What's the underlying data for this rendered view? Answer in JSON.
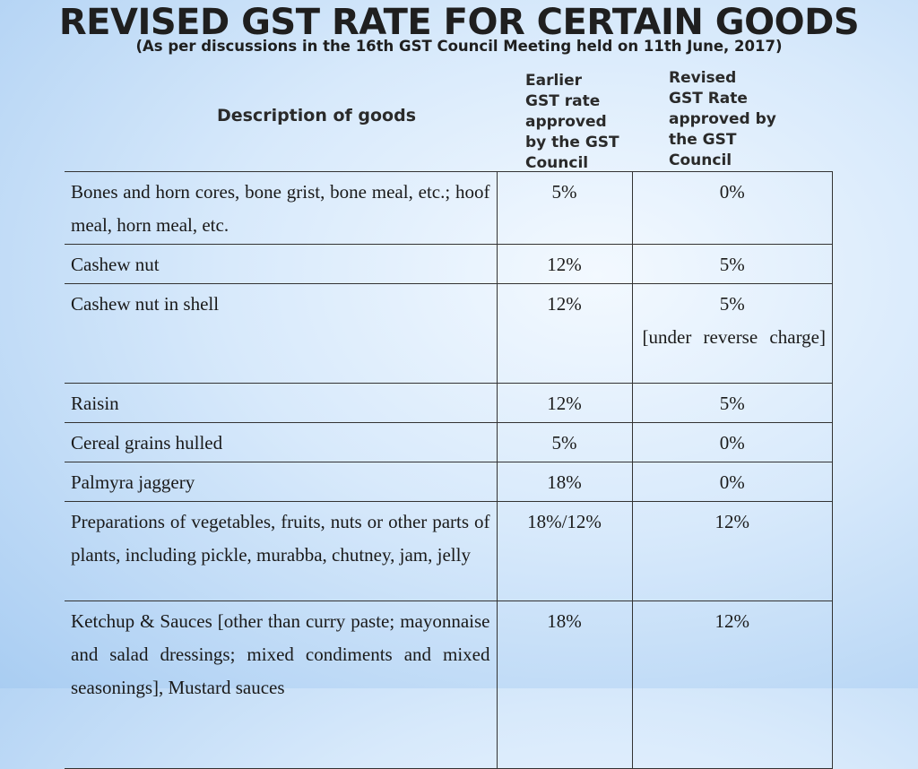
{
  "title": "REVISED GST RATE FOR CERTAIN GOODS",
  "subtitle": "(As  per discussions in the 16th GST Council Meeting held on 11th June, 2017)",
  "columns": {
    "description": "Description of goods",
    "earlier": "Earlier\nGST rate\napproved\nby the GST\nCouncil",
    "revised": "Revised\nGST Rate\napproved by\nthe GST\nCouncil"
  },
  "rows": [
    {
      "description": "Bones and horn cores, bone grist, bone meal, etc.; hoof meal, horn meal, etc.",
      "earlier": "5%",
      "revised": "0%",
      "note": ""
    },
    {
      "description": "Cashew nut",
      "earlier": "12%",
      "revised": "5%",
      "note": ""
    },
    {
      "description": "Cashew nut in shell",
      "earlier": "12%",
      "revised": "5%",
      "note": "[under reverse charge]"
    },
    {
      "description": "Raisin",
      "earlier": "12%",
      "revised": "5%",
      "note": ""
    },
    {
      "description": "Cereal grains hulled",
      "earlier": "5%",
      "revised": "0%",
      "note": ""
    },
    {
      "description": "Palmyra jaggery",
      "earlier": "18%",
      "revised": "0%",
      "note": ""
    },
    {
      "description": "Preparations of vegetables, fruits, nuts or other parts of plants, including pickle, murabba, chutney, jam, jelly",
      "earlier": "18%/12%",
      "revised": "12%",
      "note": ""
    },
    {
      "description": "Ketchup & Sauces [other than curry paste; mayonnaise and salad dressings; mixed condiments and mixed seasonings], Mustard sauces",
      "earlier": "18%",
      "revised": "12%",
      "note": ""
    }
  ]
}
